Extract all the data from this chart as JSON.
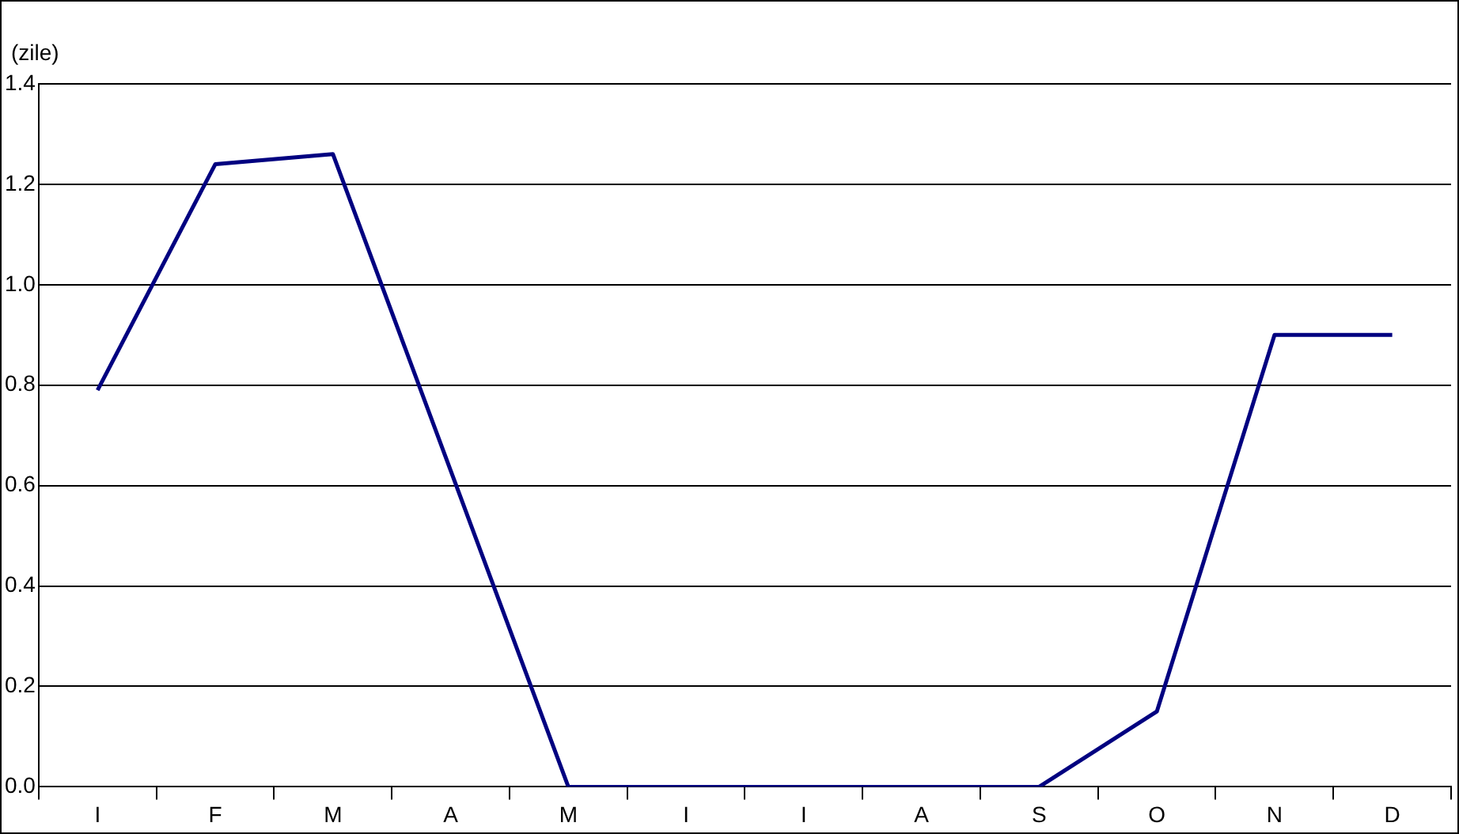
{
  "chart_data": {
    "type": "line",
    "ylabel": "(zile)",
    "categories": [
      "I",
      "F",
      "M",
      "A",
      "M",
      "I",
      "I",
      "A",
      "S",
      "O",
      "N",
      "D"
    ],
    "series": [
      {
        "color": "#000080",
        "values": [
          0.79,
          1.24,
          1.26,
          0.63,
          0,
          0,
          0,
          0,
          0,
          0.15,
          0.9,
          0.9
        ]
      }
    ],
    "ylim": [
      0,
      1.4
    ],
    "yticks": [
      {
        "value": 0,
        "label": "0.0"
      },
      {
        "value": 0.2,
        "label": "0.2"
      },
      {
        "value": 0.4,
        "label": "0.4"
      },
      {
        "value": 0.6,
        "label": "0.6"
      },
      {
        "value": 0.8,
        "label": "0.8"
      },
      {
        "value": 1,
        "label": "1.0"
      },
      {
        "value": 1.2,
        "label": "1.2"
      },
      {
        "value": 1.4,
        "label": "1.4"
      }
    ],
    "grid": "y",
    "legend": false,
    "marker": "none",
    "line_style": "solid"
  }
}
